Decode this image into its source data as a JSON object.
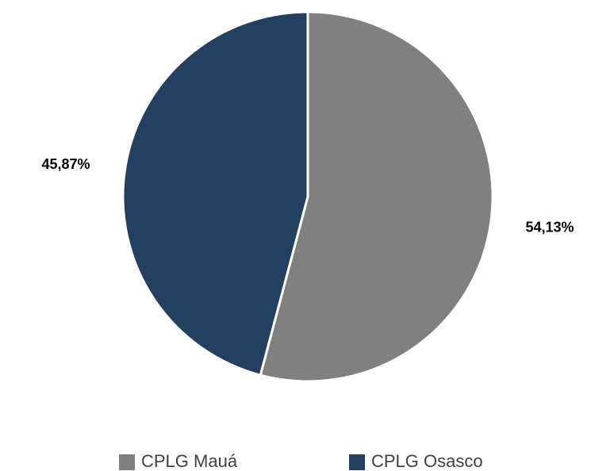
{
  "chart_data": {
    "type": "pie",
    "categories": [
      "CPLG Mauá",
      "CPLG Osasco"
    ],
    "values": [
      54.13,
      45.87
    ],
    "value_labels": [
      "54,13%",
      "45,87%"
    ],
    "colors": [
      "#808080",
      "#243f60"
    ],
    "legend": "bottom"
  }
}
